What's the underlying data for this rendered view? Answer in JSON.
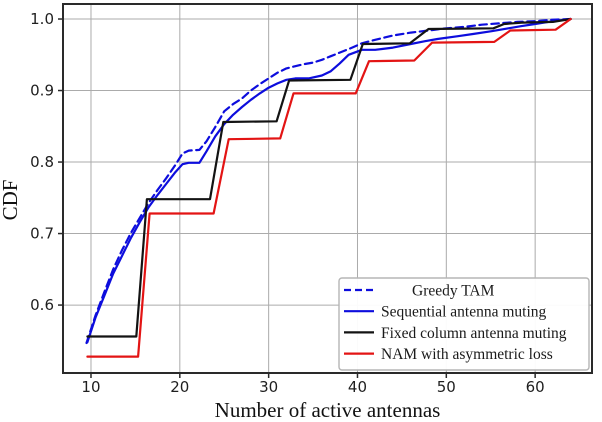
{
  "chart_data": {
    "type": "line",
    "title": "",
    "xlabel": "Number of active antennas",
    "ylabel": "CDF",
    "xlim": [
      6.85,
      66.4
    ],
    "ylim": [
      0.505,
      1.021
    ],
    "grid": true,
    "legend_position": "lower right",
    "xticks": {
      "values": [
        10,
        20,
        30,
        40,
        50,
        60
      ],
      "labels": [
        "10",
        "20",
        "30",
        "40",
        "50",
        "60"
      ]
    },
    "yticks": {
      "values": [
        0.6,
        0.7,
        0.8,
        0.9,
        1.0
      ],
      "labels": [
        "0.6",
        "0.7",
        "0.8",
        "0.9",
        "1.0"
      ]
    },
    "series": [
      {
        "name": "Greedy TAM",
        "id": "greedy-tam",
        "color": "#0d0ddd",
        "dash": true,
        "points": [
          [
            9.5,
            0.547
          ],
          [
            10.5,
            0.585
          ],
          [
            11.5,
            0.618
          ],
          [
            12.5,
            0.65
          ],
          [
            13.5,
            0.677
          ],
          [
            14.5,
            0.701
          ],
          [
            15.5,
            0.722
          ],
          [
            16.5,
            0.743
          ],
          [
            17.5,
            0.761
          ],
          [
            18.5,
            0.778
          ],
          [
            19.5,
            0.796
          ],
          [
            20.3,
            0.812
          ],
          [
            21.0,
            0.816
          ],
          [
            22.2,
            0.817
          ],
          [
            23.0,
            0.829
          ],
          [
            24.0,
            0.849
          ],
          [
            25.0,
            0.871
          ],
          [
            26.0,
            0.881
          ],
          [
            27.0,
            0.889
          ],
          [
            28.0,
            0.9
          ],
          [
            29.0,
            0.909
          ],
          [
            30.0,
            0.917
          ],
          [
            31.0,
            0.925
          ],
          [
            32.0,
            0.931
          ],
          [
            33.0,
            0.934
          ],
          [
            34.0,
            0.937
          ],
          [
            35.0,
            0.939
          ],
          [
            36.0,
            0.943
          ],
          [
            37.0,
            0.948
          ],
          [
            38.0,
            0.953
          ],
          [
            39.0,
            0.958
          ],
          [
            40.5,
            0.966
          ],
          [
            42.0,
            0.971
          ],
          [
            44.0,
            0.977
          ],
          [
            46.0,
            0.981
          ],
          [
            48.0,
            0.984
          ],
          [
            50.0,
            0.987
          ],
          [
            52.0,
            0.989
          ],
          [
            54.0,
            0.992
          ],
          [
            56.0,
            0.994
          ],
          [
            58.0,
            0.996
          ],
          [
            60.0,
            0.997
          ],
          [
            62.0,
            0.999
          ],
          [
            64.0,
            1.0
          ]
        ]
      },
      {
        "name": "Sequential antenna muting",
        "id": "sequential-antenna-muting",
        "color": "#0d0ddd",
        "dash": false,
        "points": [
          [
            9.6,
            0.548
          ],
          [
            10.5,
            0.582
          ],
          [
            11.5,
            0.613
          ],
          [
            12.5,
            0.644
          ],
          [
            13.5,
            0.669
          ],
          [
            14.5,
            0.694
          ],
          [
            15.5,
            0.716
          ],
          [
            16.5,
            0.737
          ],
          [
            17.5,
            0.754
          ],
          [
            18.5,
            0.77
          ],
          [
            19.5,
            0.786
          ],
          [
            20.3,
            0.797
          ],
          [
            21.0,
            0.799
          ],
          [
            22.2,
            0.799
          ],
          [
            23.0,
            0.815
          ],
          [
            24.0,
            0.836
          ],
          [
            25.0,
            0.853
          ],
          [
            26.0,
            0.866
          ],
          [
            27.0,
            0.877
          ],
          [
            28.0,
            0.887
          ],
          [
            29.0,
            0.896
          ],
          [
            30.0,
            0.904
          ],
          [
            31.0,
            0.91
          ],
          [
            32.0,
            0.915
          ],
          [
            33.0,
            0.917
          ],
          [
            34.5,
            0.917
          ],
          [
            36.0,
            0.921
          ],
          [
            37.0,
            0.927
          ],
          [
            38.0,
            0.938
          ],
          [
            39.0,
            0.95
          ],
          [
            40.5,
            0.957
          ],
          [
            42.0,
            0.957
          ],
          [
            44.0,
            0.96
          ],
          [
            46.0,
            0.965
          ],
          [
            47.6,
            0.969
          ],
          [
            49.0,
            0.972
          ],
          [
            51.3,
            0.976
          ],
          [
            53.0,
            0.979
          ],
          [
            55.1,
            0.983
          ],
          [
            57.0,
            0.987
          ],
          [
            58.4,
            0.99
          ],
          [
            60.0,
            0.993
          ],
          [
            62.0,
            0.997
          ],
          [
            64.0,
            1.0
          ]
        ]
      },
      {
        "name": "Fixed column antenna muting",
        "id": "fixed-column-antenna-muting",
        "color": "#131313",
        "dash": false,
        "points": [
          [
            9.6,
            0.556
          ],
          [
            15.1,
            0.556
          ],
          [
            16.3,
            0.748
          ],
          [
            23.4,
            0.748
          ],
          [
            24.9,
            0.856
          ],
          [
            30.9,
            0.857
          ],
          [
            32.3,
            0.914
          ],
          [
            39.2,
            0.915
          ],
          [
            40.6,
            0.965
          ],
          [
            45.9,
            0.966
          ],
          [
            48.0,
            0.986
          ],
          [
            55.3,
            0.987
          ],
          [
            56.5,
            0.993
          ],
          [
            58.5,
            0.995
          ],
          [
            62.0,
            0.996
          ],
          [
            64.0,
            1.0
          ]
        ]
      },
      {
        "name": "NAM with asymmetric loss",
        "id": "nam-asymmetric-loss",
        "color": "#e31414",
        "dash": false,
        "points": [
          [
            9.6,
            0.528
          ],
          [
            15.3,
            0.528
          ],
          [
            16.6,
            0.728
          ],
          [
            23.8,
            0.728
          ],
          [
            25.5,
            0.832
          ],
          [
            31.3,
            0.833
          ],
          [
            32.8,
            0.896
          ],
          [
            39.8,
            0.896
          ],
          [
            41.3,
            0.941
          ],
          [
            46.4,
            0.942
          ],
          [
            48.4,
            0.967
          ],
          [
            55.4,
            0.968
          ],
          [
            57.2,
            0.984
          ],
          [
            62.3,
            0.985
          ],
          [
            64.0,
            1.0
          ]
        ]
      }
    ],
    "legend_entries": [
      {
        "label": "Greedy TAM",
        "series": "greedy-tam",
        "indent": 31
      },
      {
        "label": "Sequential antenna muting",
        "series": "sequential-antenna-muting",
        "indent": 0
      },
      {
        "label": "Fixed column antenna muting",
        "series": "fixed-column-antenna-muting",
        "indent": 0
      },
      {
        "label": "NAM with asymmetric loss",
        "series": "nam-asymmetric-loss",
        "indent": 0
      }
    ],
    "colors": {
      "grid": "#ababab",
      "frame": "#2a2a2a",
      "tick_text": "#1f1f1f",
      "axis_text": "#111111",
      "legend_border": "#b5b5b5",
      "legend_bg": "#ffffff",
      "legend_text": "#1a1a1a",
      "background": "#ffffff"
    }
  }
}
